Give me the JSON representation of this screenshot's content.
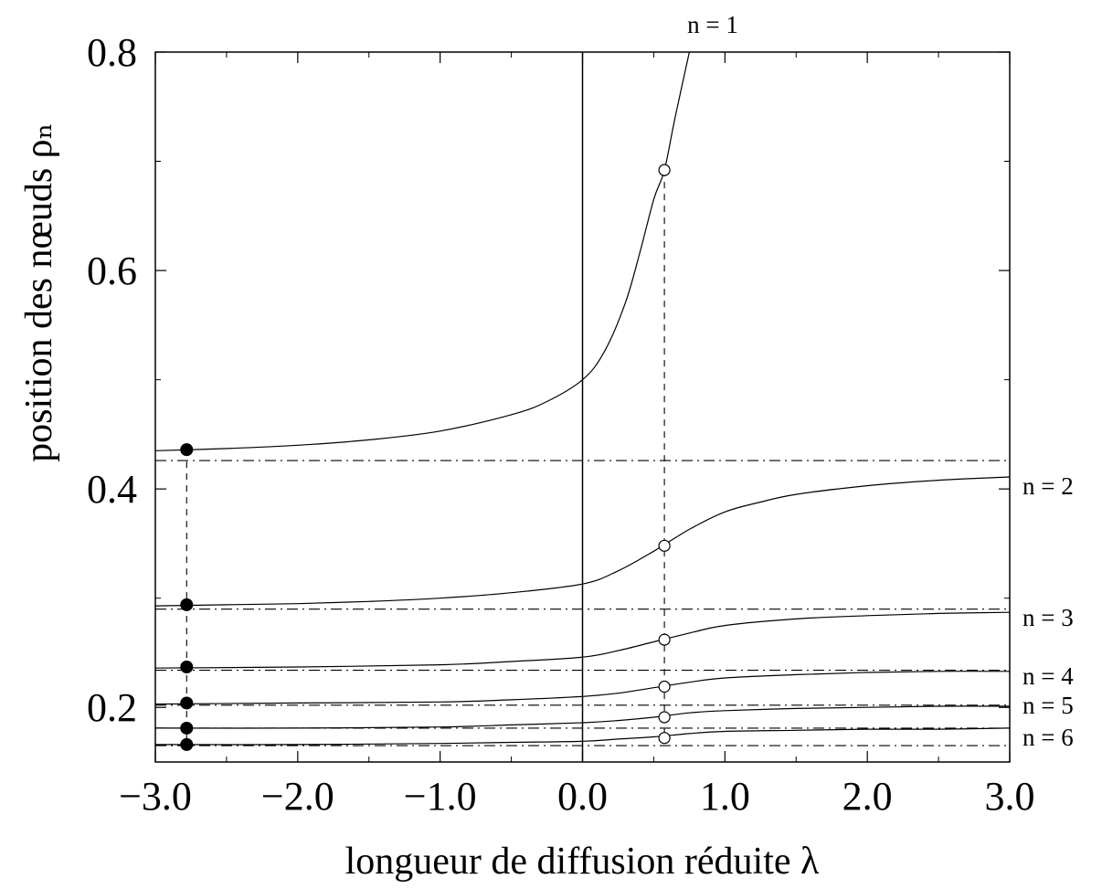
{
  "chart_data": {
    "type": "line",
    "title": "",
    "xlabel": "longueur de diffusion réduite λ",
    "ylabel": "position des nœuds ρₙ",
    "xlim": [
      -3.0,
      3.0
    ],
    "ylim": [
      0.15,
      0.8
    ],
    "x_ticks": [
      -3.0,
      -2.0,
      -1.0,
      0.0,
      1.0,
      2.0,
      3.0
    ],
    "x_tick_labels": [
      "−3.0",
      "−2.0",
      "−1.0",
      "0.0",
      "1.0",
      "2.0",
      "3.0"
    ],
    "y_ticks": [
      0.2,
      0.4,
      0.6,
      0.8
    ],
    "y_tick_labels": [
      "0.2",
      "0.4",
      "0.6",
      "0.8"
    ],
    "grid": false,
    "vertical_reference_x": 0.0,
    "series": [
      {
        "name": "n = 1",
        "x": [
          -3.0,
          -2.5,
          -2.0,
          -1.5,
          -1.0,
          -0.5,
          -0.25,
          0.0,
          0.15,
          0.3,
          0.4,
          0.5,
          0.575,
          0.65,
          0.75
        ],
        "y": [
          0.435,
          0.437,
          0.44,
          0.445,
          0.453,
          0.468,
          0.48,
          0.5,
          0.525,
          0.57,
          0.615,
          0.665,
          0.692,
          0.74,
          0.8
        ],
        "asymptote": 0.426,
        "marker_open": [
          0.575,
          0.692
        ],
        "marker_filled": [
          -2.78,
          0.436
        ]
      },
      {
        "name": "n = 2",
        "x": [
          -3.0,
          -2.5,
          -2.0,
          -1.5,
          -1.0,
          -0.5,
          0.0,
          0.25,
          0.5,
          0.75,
          1.0,
          1.25,
          1.5,
          2.0,
          2.5,
          3.0
        ],
        "y": [
          0.293,
          0.294,
          0.295,
          0.297,
          0.3,
          0.305,
          0.313,
          0.325,
          0.343,
          0.363,
          0.379,
          0.388,
          0.395,
          0.403,
          0.408,
          0.411
        ],
        "asymptote": 0.29,
        "marker_open": [
          0.575,
          0.348
        ],
        "marker_filled": [
          -2.78,
          0.294
        ]
      },
      {
        "name": "n = 3",
        "x": [
          -3.0,
          -2.0,
          -1.0,
          -0.5,
          0.0,
          0.25,
          0.5,
          0.75,
          1.0,
          1.5,
          2.0,
          2.5,
          3.0
        ],
        "y": [
          0.236,
          0.237,
          0.239,
          0.242,
          0.246,
          0.252,
          0.26,
          0.268,
          0.275,
          0.281,
          0.284,
          0.286,
          0.287
        ],
        "asymptote": 0.234,
        "marker_open": [
          0.575,
          0.262
        ],
        "marker_filled": [
          -2.78,
          0.237
        ]
      },
      {
        "name": "n = 4",
        "x": [
          -3.0,
          -2.0,
          -1.0,
          -0.5,
          0.0,
          0.25,
          0.5,
          0.75,
          1.0,
          1.5,
          2.0,
          2.5,
          3.0
        ],
        "y": [
          0.203,
          0.204,
          0.205,
          0.207,
          0.21,
          0.213,
          0.218,
          0.223,
          0.227,
          0.23,
          0.232,
          0.233,
          0.233
        ],
        "asymptote": 0.202,
        "marker_open": [
          0.575,
          0.219
        ],
        "marker_filled": [
          -2.78,
          0.204
        ]
      },
      {
        "name": "n = 5",
        "x": [
          -3.0,
          -2.0,
          -1.0,
          -0.5,
          0.0,
          0.25,
          0.5,
          0.75,
          1.0,
          1.5,
          2.0,
          2.5,
          3.0
        ],
        "y": [
          0.181,
          0.181,
          0.182,
          0.184,
          0.186,
          0.188,
          0.191,
          0.195,
          0.197,
          0.199,
          0.2,
          0.201,
          0.201
        ],
        "asymptote": 0.181,
        "marker_open": [
          0.575,
          0.191
        ],
        "marker_filled": [
          -2.78,
          0.181
        ]
      },
      {
        "name": "n = 6",
        "x": [
          -3.0,
          -2.0,
          -1.0,
          -0.5,
          0.0,
          0.25,
          0.5,
          0.75,
          1.0,
          1.5,
          2.0,
          2.5,
          3.0
        ],
        "y": [
          0.166,
          0.166,
          0.167,
          0.168,
          0.169,
          0.171,
          0.173,
          0.176,
          0.178,
          0.179,
          0.18,
          0.18,
          0.181
        ],
        "asymptote": 0.165,
        "marker_open": [
          0.575,
          0.172
        ],
        "marker_filled": [
          -2.78,
          0.166
        ]
      }
    ],
    "vertical_dashed_x": [
      -2.78,
      0.575
    ]
  }
}
